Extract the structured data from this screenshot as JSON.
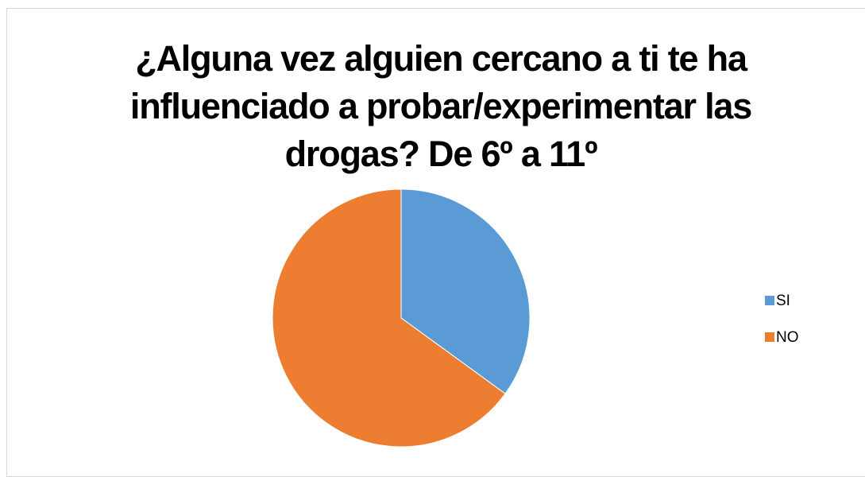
{
  "chart_data": {
    "type": "pie",
    "title": "¿Alguna vez alguien cercano a ti te ha influenciado a probar/experimentar las drogas? De 6º a 11º",
    "categories": [
      "SI",
      "NO"
    ],
    "values": [
      35,
      65
    ],
    "colors": [
      "#5b9bd5",
      "#ed7d31"
    ],
    "legend": "right"
  }
}
